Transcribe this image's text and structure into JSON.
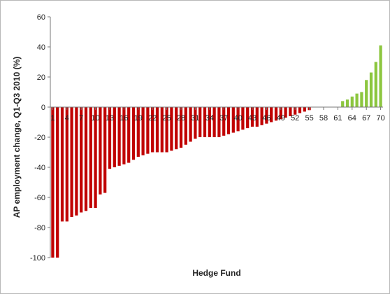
{
  "chart_data": {
    "type": "bar",
    "xlabel": "Hedge Fund",
    "ylabel": "AP employment change, Q1-Q3 2010 (%)",
    "ylim": [
      -100,
      60
    ],
    "y_ticks": [
      -100,
      -80,
      -60,
      -40,
      -20,
      0,
      20,
      40,
      60
    ],
    "x_tick_labels": [
      "1",
      "4",
      "7",
      "10",
      "13",
      "16",
      "19",
      "22",
      "25",
      "28",
      "31",
      "34",
      "37",
      "40",
      "43",
      "46",
      "49",
      "52",
      "55",
      "58",
      "61",
      "64",
      "67",
      "70"
    ],
    "x": [
      1,
      2,
      3,
      4,
      5,
      6,
      7,
      8,
      9,
      10,
      11,
      12,
      13,
      14,
      15,
      16,
      17,
      18,
      19,
      20,
      21,
      22,
      23,
      24,
      25,
      26,
      27,
      28,
      29,
      30,
      31,
      32,
      33,
      34,
      35,
      36,
      37,
      38,
      39,
      40,
      41,
      42,
      43,
      44,
      45,
      46,
      47,
      48,
      49,
      50,
      51,
      52,
      53,
      54,
      55,
      56,
      57,
      58,
      59,
      60,
      61,
      62,
      63,
      64,
      65,
      66,
      67,
      68,
      69,
      70
    ],
    "values": [
      -100,
      -100,
      -76,
      -76,
      -73,
      -72,
      -70,
      -69,
      -67,
      -67,
      -58,
      -57,
      -41,
      -40,
      -39,
      -38,
      -37,
      -35,
      -33,
      -32,
      -31,
      -30,
      -30,
      -30,
      -30,
      -29,
      -28,
      -27,
      -25,
      -23,
      -21,
      -20,
      -20,
      -20,
      -20,
      -20,
      -19,
      -18,
      -17,
      -16,
      -15,
      -14,
      -13,
      -13,
      -12,
      -11,
      -10,
      -9,
      -8,
      -7,
      -6,
      -5,
      -4,
      -3,
      -2,
      0,
      0,
      0,
      0,
      0,
      0,
      4,
      5,
      7,
      9,
      10,
      18,
      23,
      30,
      41
    ],
    "negative_color": "#c00000",
    "positive_color": "#8cc63f",
    "grid": false,
    "legend": "none"
  }
}
